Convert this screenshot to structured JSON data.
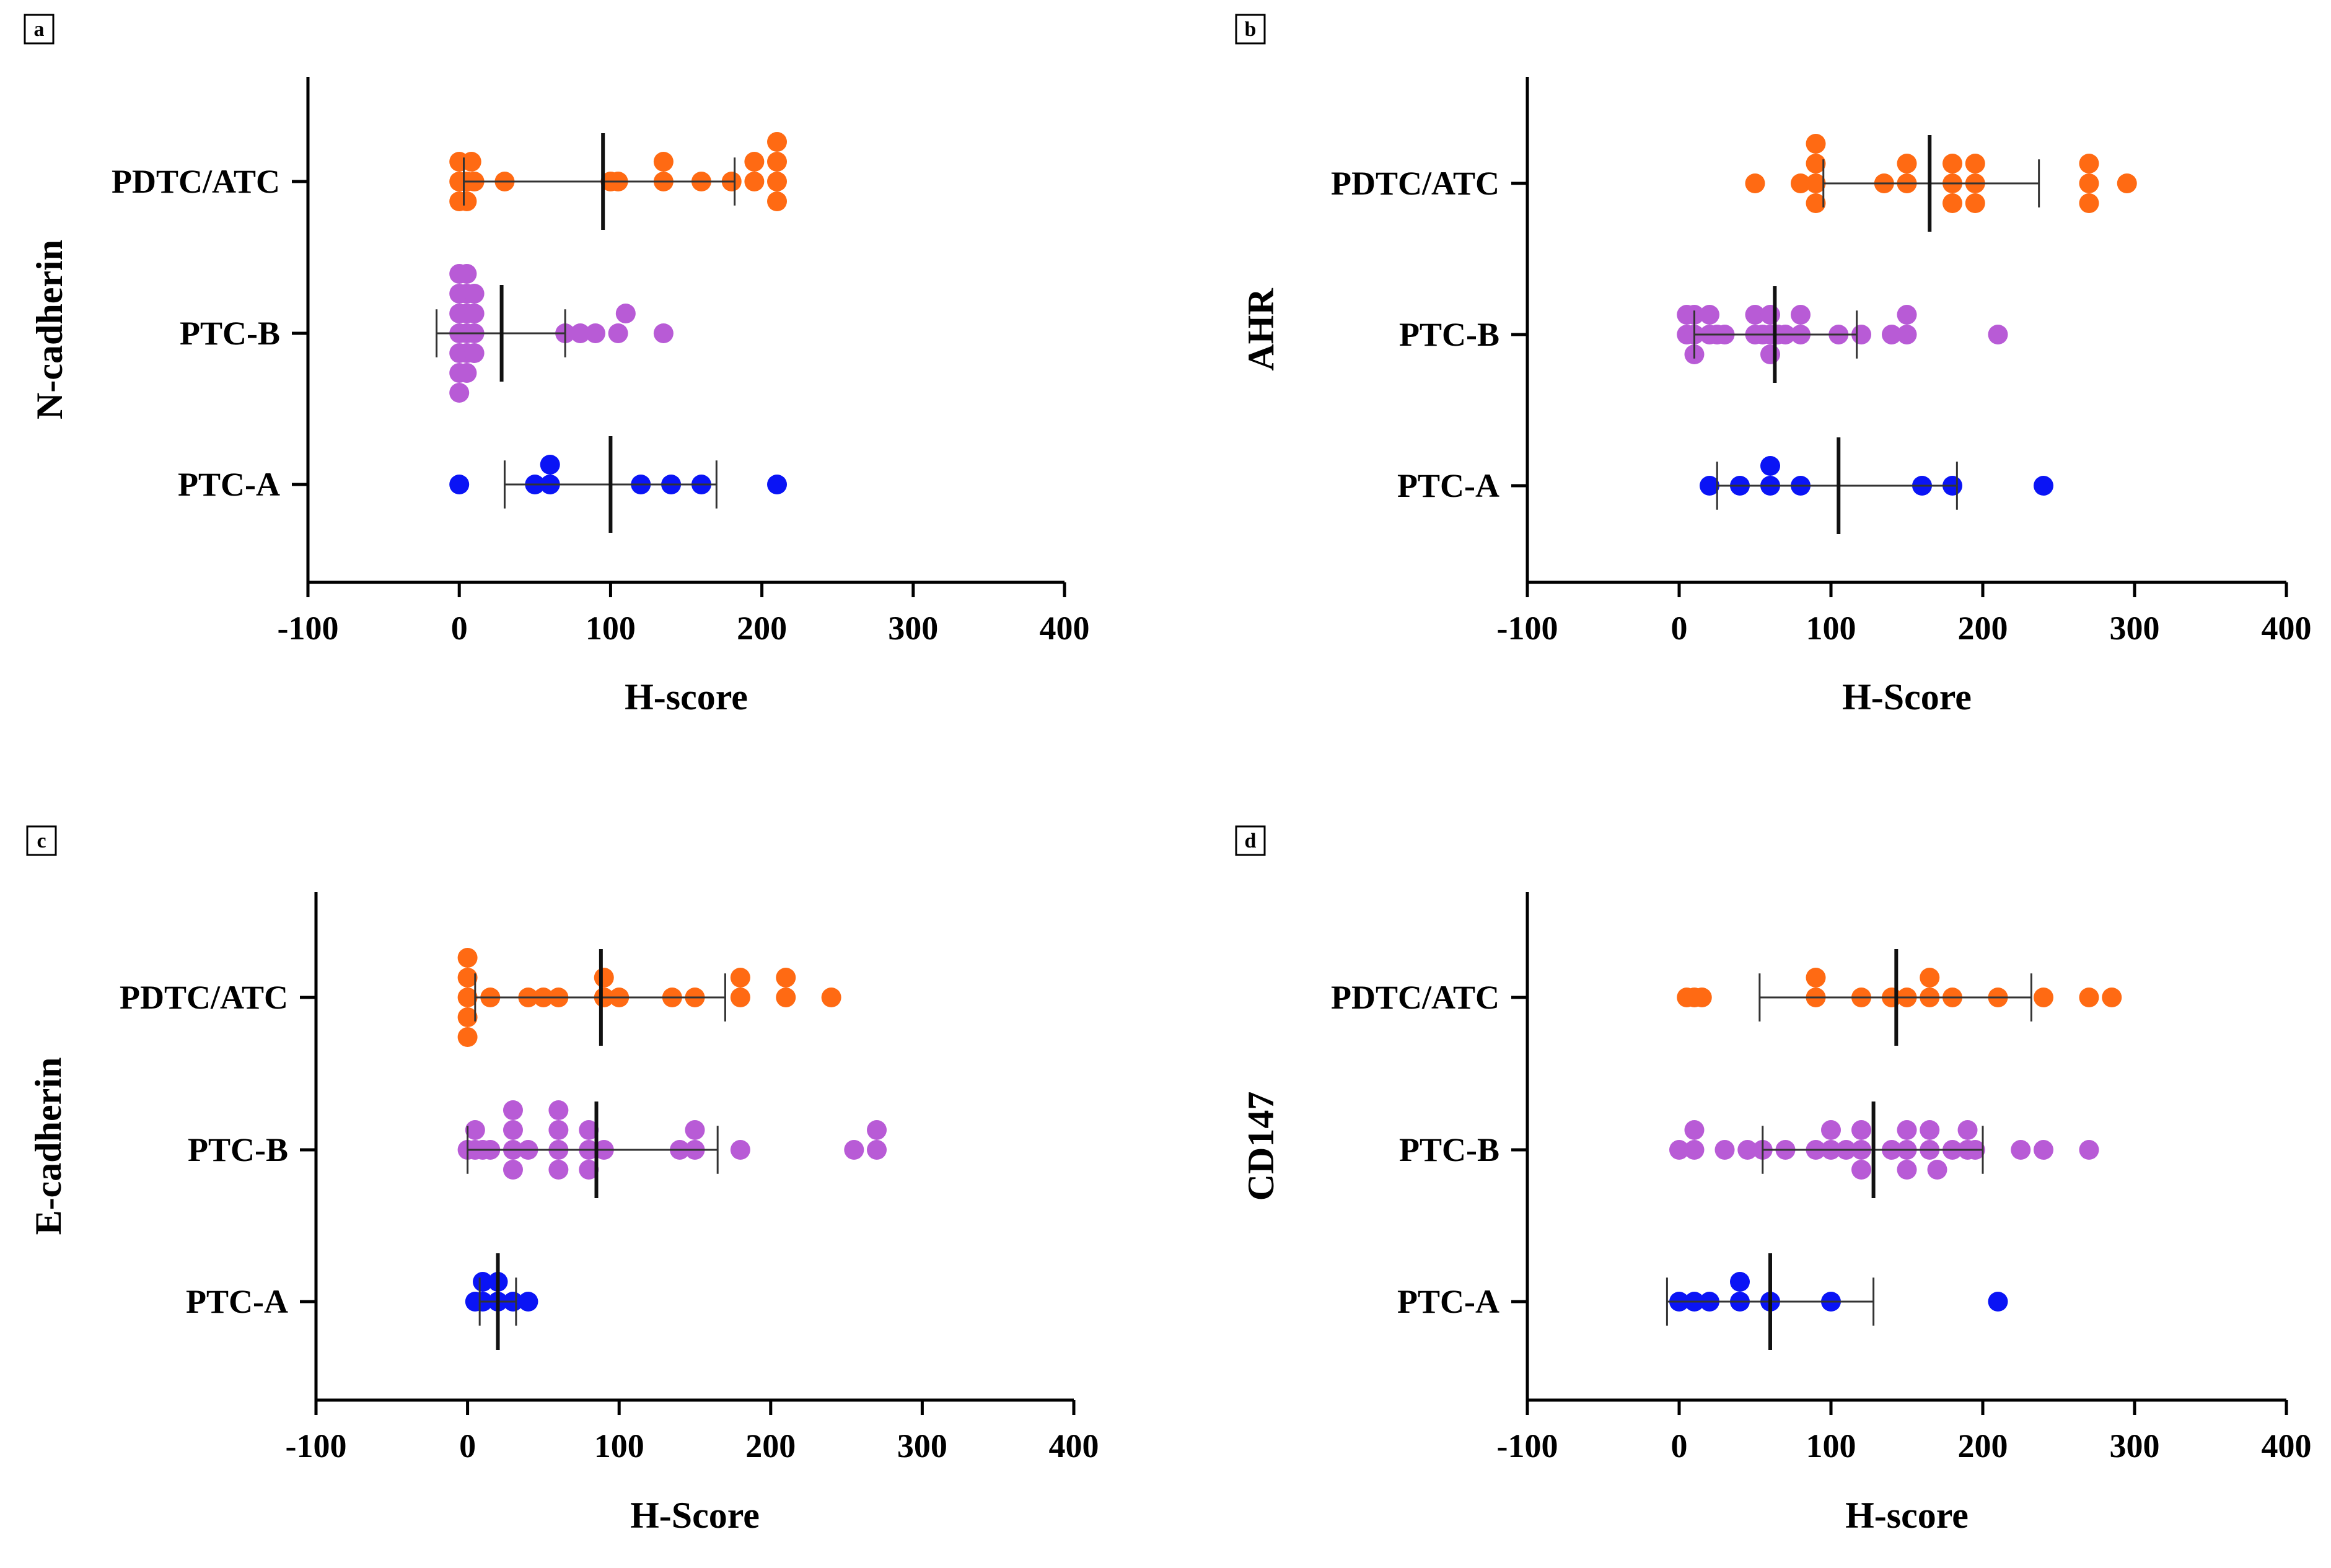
{
  "colors": {
    "PDTC/ATC": "#FF6A13",
    "PTC-B": "#B85BD6",
    "PTC-A": "#0A14F5",
    "axis": "#000000",
    "errbar": "#333333"
  },
  "chart_data": [
    {
      "panel": "a",
      "type": "scatter",
      "ylabel": "N-cadherin",
      "xlabel": "H-score",
      "xlim": [
        -100,
        400
      ],
      "xticks": [
        -100,
        0,
        100,
        200,
        300,
        400
      ],
      "xtick_labels": [
        "-100",
        "0",
        "100",
        "200",
        "300",
        "400"
      ],
      "categories": [
        "PDTC/ATC",
        "PTC-B",
        "PTC-A"
      ],
      "series": [
        {
          "name": "PDTC/ATC",
          "mean": 95,
          "sd_low": 3,
          "sd_high": 182,
          "values": [
            0,
            5,
            0,
            8,
            10,
            5,
            0,
            30,
            100,
            105,
            135,
            135,
            160,
            180,
            195,
            195,
            210,
            210,
            210,
            210
          ]
        },
        {
          "name": "PTC-B",
          "mean": 28,
          "sd_low": -15,
          "sd_high": 70,
          "values": [
            0,
            0,
            0,
            0,
            0,
            0,
            0,
            5,
            5,
            5,
            5,
            5,
            5,
            10,
            10,
            10,
            10,
            70,
            80,
            90,
            105,
            110,
            135
          ]
        },
        {
          "name": "PTC-A",
          "mean": 100,
          "sd_low": 30,
          "sd_high": 170,
          "values": [
            0,
            50,
            60,
            60,
            120,
            140,
            160,
            210
          ]
        }
      ]
    },
    {
      "panel": "b",
      "type": "scatter",
      "ylabel": "AHR",
      "xlabel": "H-Score",
      "xlim": [
        -100,
        400
      ],
      "xticks": [
        -100,
        0,
        100,
        200,
        300,
        400
      ],
      "xtick_labels": [
        "-100",
        "0",
        "100",
        "200",
        "300",
        "400"
      ],
      "categories": [
        "PDTC/ATC",
        "PTC-B",
        "PTC-A"
      ],
      "series": [
        {
          "name": "PDTC/ATC",
          "mean": 165,
          "sd_low": 95,
          "sd_high": 237,
          "values": [
            50,
            80,
            90,
            90,
            90,
            90,
            135,
            150,
            150,
            180,
            180,
            180,
            195,
            195,
            195,
            270,
            270,
            270,
            295
          ]
        },
        {
          "name": "PTC-B",
          "mean": 63,
          "sd_low": 10,
          "sd_high": 117,
          "values": [
            5,
            5,
            10,
            10,
            10,
            20,
            20,
            25,
            30,
            50,
            50,
            55,
            60,
            60,
            60,
            65,
            70,
            80,
            80,
            105,
            120,
            140,
            150,
            150,
            210
          ]
        },
        {
          "name": "PTC-A",
          "mean": 105,
          "sd_low": 25,
          "sd_high": 183,
          "values": [
            20,
            40,
            60,
            60,
            80,
            160,
            180,
            240
          ]
        }
      ]
    },
    {
      "panel": "c",
      "type": "scatter",
      "ylabel": "E-cadherin",
      "xlabel": "H-Score",
      "xlim": [
        -100,
        400
      ],
      "xticks": [
        -100,
        0,
        100,
        200,
        300,
        400
      ],
      "xtick_labels": [
        "-100",
        "0",
        "100",
        "200",
        "300",
        "400"
      ],
      "categories": [
        "PDTC/ATC",
        "PTC-B",
        "PTC-A"
      ],
      "series": [
        {
          "name": "PDTC/ATC",
          "mean": 88,
          "sd_low": 5,
          "sd_high": 170,
          "values": [
            0,
            0,
            0,
            0,
            0,
            15,
            40,
            50,
            60,
            90,
            90,
            100,
            135,
            150,
            180,
            180,
            210,
            210,
            240
          ]
        },
        {
          "name": "PTC-B",
          "mean": 85,
          "sd_low": 0,
          "sd_high": 165,
          "values": [
            0,
            5,
            5,
            10,
            15,
            30,
            30,
            30,
            30,
            40,
            60,
            60,
            60,
            60,
            80,
            80,
            80,
            90,
            140,
            150,
            150,
            180,
            255,
            270,
            270
          ]
        },
        {
          "name": "PTC-A",
          "mean": 20,
          "sd_low": 8,
          "sd_high": 32,
          "values": [
            5,
            10,
            10,
            20,
            20,
            30,
            40
          ]
        }
      ]
    },
    {
      "panel": "d",
      "type": "scatter",
      "ylabel": "CD147",
      "xlabel": "H-score",
      "xlim": [
        -100,
        400
      ],
      "xticks": [
        -100,
        0,
        100,
        200,
        300,
        400
      ],
      "xtick_labels": [
        "-100",
        "0",
        "100",
        "200",
        "300",
        "400"
      ],
      "categories": [
        "PDTC/ATC",
        "PTC-B",
        "PTC-A"
      ],
      "series": [
        {
          "name": "PDTC/ATC",
          "mean": 143,
          "sd_low": 53,
          "sd_high": 232,
          "values": [
            5,
            10,
            15,
            90,
            90,
            120,
            140,
            150,
            165,
            165,
            180,
            210,
            240,
            270,
            285
          ]
        },
        {
          "name": "PTC-B",
          "mean": 128,
          "sd_low": 55,
          "sd_high": 200,
          "values": [
            0,
            10,
            10,
            30,
            45,
            55,
            70,
            90,
            100,
            100,
            110,
            120,
            120,
            120,
            140,
            150,
            150,
            150,
            165,
            165,
            170,
            180,
            190,
            190,
            195,
            225,
            240,
            270
          ]
        },
        {
          "name": "PTC-A",
          "mean": 60,
          "sd_low": -8,
          "sd_high": 128,
          "values": [
            0,
            10,
            20,
            40,
            40,
            60,
            100,
            210
          ]
        }
      ]
    }
  ]
}
